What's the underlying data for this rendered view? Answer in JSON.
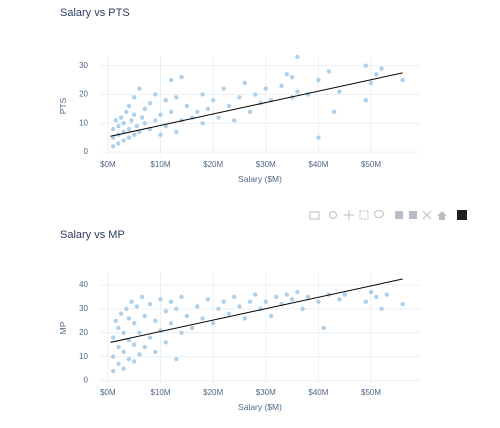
{
  "chart_data": [
    {
      "type": "scatter",
      "title": "Salary vs PTS",
      "x_label": "Salary ($M)",
      "y_label": "PTS",
      "color": "#a6cbe8",
      "grid": true,
      "xlim": [
        -1.5,
        59.3
      ],
      "ylim": [
        -1,
        33
      ],
      "xticks": [
        {
          "value": 0,
          "label": "$0M"
        },
        {
          "value": 10,
          "label": "$10M"
        },
        {
          "value": 20,
          "label": "$20M"
        },
        {
          "value": 30,
          "label": "$30M"
        },
        {
          "value": 40,
          "label": "$40M"
        },
        {
          "value": 50,
          "label": "$50M"
        }
      ],
      "yticks": [
        0,
        10,
        20,
        30
      ],
      "x": [
        1,
        1,
        1,
        1.5,
        2,
        2,
        2,
        2.5,
        3,
        3,
        3,
        3.5,
        4,
        4,
        4,
        4.5,
        5,
        5,
        5,
        5.5,
        6,
        6,
        6.5,
        7,
        7,
        8,
        8,
        9,
        9,
        10,
        10,
        11,
        11,
        12,
        12,
        13,
        13,
        14,
        14,
        15,
        16,
        17,
        18,
        18,
        19,
        20,
        21,
        22,
        23,
        24,
        25,
        26,
        27,
        28,
        29,
        30,
        31,
        33,
        34,
        35,
        35,
        36,
        36,
        38,
        40,
        40,
        42,
        43,
        44,
        49,
        49,
        50,
        51,
        52,
        56
      ],
      "values": [
        2,
        5,
        8,
        11,
        3,
        6,
        9,
        12,
        4,
        7,
        10,
        14,
        5,
        8,
        16,
        11,
        6,
        13,
        19,
        9,
        7,
        22,
        12,
        10,
        15,
        8,
        17,
        11,
        20,
        6,
        13,
        9,
        18,
        14,
        25,
        7,
        19,
        11,
        26,
        16,
        12,
        14,
        10,
        20,
        15,
        18,
        12,
        22,
        16,
        11,
        19,
        24,
        14,
        20,
        17,
        22,
        18,
        23,
        27,
        26,
        19,
        33,
        21,
        20,
        5,
        25,
        28,
        14,
        21,
        18,
        30,
        24,
        27,
        29,
        25
      ],
      "trend": {
        "color": "#000000",
        "x": [
          0.5,
          56
        ],
        "values": [
          5.5,
          27.5
        ]
      }
    },
    {
      "type": "scatter",
      "title": "Salary vs MP",
      "x_label": "Salary ($M)",
      "y_label": "MP",
      "color": "#a6cbe8",
      "grid": true,
      "xlim": [
        -1.5,
        59.3
      ],
      "ylim": [
        -1,
        45
      ],
      "xticks": [
        {
          "value": 0,
          "label": "$0M"
        },
        {
          "value": 10,
          "label": "$10M"
        },
        {
          "value": 20,
          "label": "$20M"
        },
        {
          "value": 30,
          "label": "$30M"
        },
        {
          "value": 40,
          "label": "$40M"
        },
        {
          "value": 50,
          "label": "$50M"
        }
      ],
      "yticks": [
        0,
        10,
        20,
        30,
        40
      ],
      "x": [
        1,
        1,
        1,
        1.5,
        2,
        2,
        2,
        2.5,
        3,
        3,
        3,
        3.5,
        4,
        4,
        4,
        4.5,
        5,
        5,
        5,
        5.5,
        6,
        6,
        6.5,
        7,
        7,
        8,
        8,
        9,
        9,
        10,
        10,
        11,
        11,
        12,
        12,
        13,
        13,
        14,
        14,
        15,
        16,
        17,
        18,
        19,
        20,
        21,
        22,
        23,
        24,
        25,
        26,
        27,
        28,
        29,
        30,
        31,
        32,
        33,
        34,
        35,
        36,
        37,
        38,
        40,
        41,
        42,
        44,
        45,
        49,
        50,
        51,
        52,
        53,
        56
      ],
      "values": [
        4,
        10,
        18,
        25,
        7,
        14,
        22,
        28,
        5,
        12,
        20,
        30,
        9,
        17,
        26,
        33,
        8,
        15,
        24,
        31,
        11,
        20,
        35,
        14,
        27,
        18,
        32,
        12,
        25,
        21,
        34,
        16,
        29,
        24,
        33,
        9,
        30,
        20,
        35,
        27,
        22,
        31,
        26,
        34,
        24,
        30,
        33,
        28,
        35,
        31,
        26,
        33,
        36,
        30,
        33,
        27,
        35,
        32,
        36,
        34,
        37,
        30,
        35,
        33,
        22,
        36,
        34,
        36,
        33,
        37,
        35,
        30,
        36,
        32
      ],
      "trend": {
        "color": "#000000",
        "x": [
          0.5,
          56
        ],
        "values": [
          16,
          42.5
        ]
      }
    }
  ]
}
